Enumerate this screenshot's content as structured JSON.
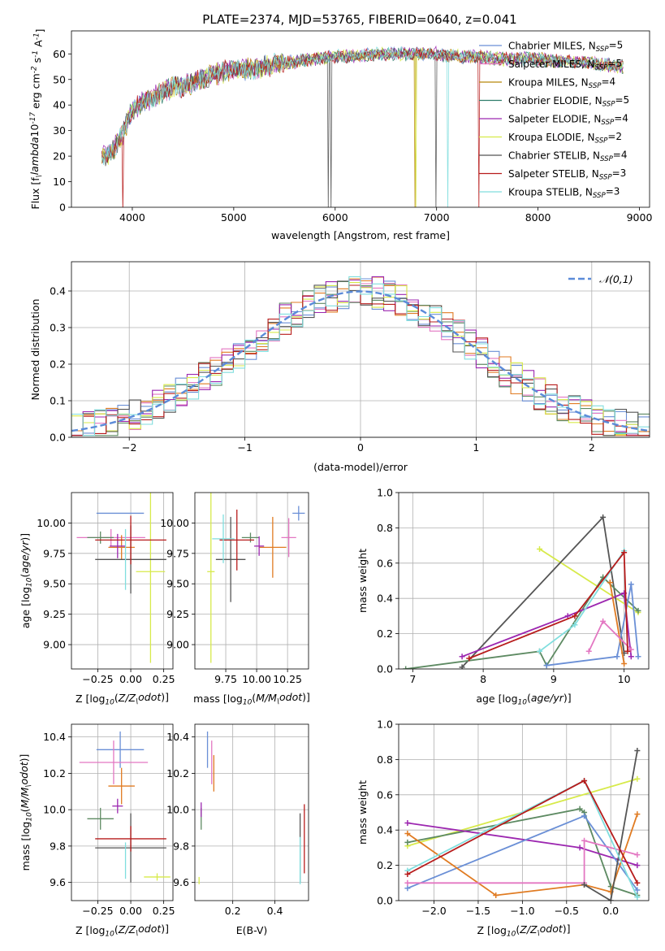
{
  "title": "PLATE=2374, MJD=53765, FIBERID=0640, z=0.041",
  "colors": {
    "c0": "#6a8fd6",
    "c1": "#e377c2",
    "c2": "#e07b22",
    "c3": "#5d8a62",
    "c4": "#9c27b0",
    "c5": "#d7ea4a",
    "c6": "#555555",
    "c7": "#b71c1c",
    "c8": "#80dede",
    "spec0": "#6a8fd6",
    "spec1": "#e377c2",
    "spec2": "#b8860b",
    "spec3": "#2e7d6b",
    "spec4": "#9c27b0",
    "spec5": "#d7ea4a",
    "spec6": "#555555",
    "spec7": "#b71c1c",
    "spec8": "#80dede",
    "gauss": "#5b8bd9"
  },
  "chart_data": [
    {
      "type": "line",
      "id": "spectrum",
      "xlabel": "wavelength [Angstrom, rest frame]",
      "ylabel": "Flux [f$_\\lambda$10$^{-17}$ erg cm$^{-2}$ s$^{-1}$ A$^{-1}$]",
      "xlim": [
        3400,
        9100
      ],
      "ylim": [
        0,
        69
      ],
      "xticks": [
        4000,
        5000,
        6000,
        7000,
        8000,
        9000
      ],
      "yticks": [
        0,
        10,
        20,
        30,
        40,
        50,
        60
      ],
      "legend_position": "top-right",
      "continuum": {
        "x": [
          3700,
          3800,
          3900,
          4000,
          4100,
          4200,
          4300,
          4400,
          4500,
          4600,
          4800,
          5000,
          5200,
          5400,
          5600,
          5800,
          6000,
          6200,
          6400,
          6600,
          6800,
          7000,
          7200,
          7400,
          7600,
          7800,
          8000,
          8200,
          8400,
          8600,
          8800
        ],
        "y": [
          20,
          22,
          28,
          38,
          41,
          43,
          45,
          47,
          47,
          49,
          52,
          54,
          54,
          56,
          57,
          58,
          59,
          59,
          60,
          60,
          60,
          60,
          59,
          59,
          58,
          58,
          58,
          57,
          57,
          56,
          55
        ]
      },
      "series": [
        {
          "label": "Chabrier MILES, N$_{SSP}$=5",
          "color_key": "spec0",
          "dropouts": []
        },
        {
          "label": "Salpeter MILES, N$_{SSP}$=5",
          "color_key": "spec1",
          "dropouts": []
        },
        {
          "label": "Kroupa MILES, N$_{SSP}$=4",
          "color_key": "spec2",
          "dropouts": [
            6790
          ]
        },
        {
          "label": "Chabrier ELODIE, N$_{SSP}$=5",
          "color_key": "spec3",
          "dropouts": []
        },
        {
          "label": "Salpeter ELODIE, N$_{SSP}$=4",
          "color_key": "spec4",
          "dropouts": []
        },
        {
          "label": "Kroupa ELODIE, N$_{SSP}$=2",
          "color_key": "spec5",
          "dropouts": [
            6800
          ]
        },
        {
          "label": "Chabrier STELIB, N$_{SSP}$=4",
          "color_key": "spec6",
          "dropouts": [
            5930,
            5960,
            6990
          ]
        },
        {
          "label": "Salpeter STELIB, N$_{SSP}$=3",
          "color_key": "spec7",
          "dropouts": [
            3910,
            7420
          ]
        },
        {
          "label": "Kroupa STELIB, N$_{SSP}$=3",
          "color_key": "spec8",
          "dropouts": [
            7110
          ]
        }
      ]
    },
    {
      "type": "histogram",
      "id": "residuals",
      "xlabel": "(data-model)/error",
      "ylabel": "Normed distribution",
      "xlim": [
        -2.5,
        2.5
      ],
      "ylim": [
        0,
        0.48
      ],
      "xticks": [
        -2,
        -1,
        0,
        1,
        2
      ],
      "yticks": [
        0.0,
        0.1,
        0.2,
        0.3,
        0.4
      ],
      "grid": true,
      "legend": "$\\mathcal{N}(0,1)$",
      "legend_position": "top-right",
      "bin_width": 0.1,
      "bin_start": -2.5,
      "gaussian": {
        "mean": 0,
        "sigma": 1
      }
    },
    {
      "type": "scatter-errorbar",
      "id": "age_vs_Z",
      "xlabel": "Z [log$_{10}$($Z/Z_\\odot$)]",
      "ylabel": "age  [log$_{10}$($age/yr$)]",
      "xlim": [
        -0.45,
        0.32
      ],
      "ylim": [
        8.8,
        10.25
      ],
      "xticks": [
        -0.25,
        0.0,
        0.25
      ],
      "yticks": [
        9.0,
        9.25,
        9.5,
        9.75,
        10.0
      ],
      "grid": true,
      "points": [
        {
          "color_key": "c0",
          "x": -0.08,
          "xerr": 0.18,
          "y": 10.08,
          "yerr": 0.0
        },
        {
          "color_key": "c1",
          "x": -0.15,
          "xerr": 0.26,
          "y": 9.88,
          "yerr": 0.07
        },
        {
          "color_key": "c2",
          "x": -0.07,
          "xerr": 0.1,
          "y": 9.8,
          "yerr": 0.1
        },
        {
          "color_key": "c3",
          "x": -0.23,
          "xerr": 0.1,
          "y": 9.88,
          "yerr": 0.05
        },
        {
          "color_key": "c4",
          "x": -0.1,
          "xerr": 0.06,
          "y": 9.81,
          "yerr": 0.1
        },
        {
          "color_key": "c5",
          "x": 0.15,
          "xerr": 0.11,
          "y": 9.6,
          "yerr": 0.75
        },
        {
          "color_key": "c6",
          "x": 0.0,
          "xerr": 0.27,
          "y": 9.7,
          "yerr": 0.28
        },
        {
          "color_key": "c7",
          "x": 0.0,
          "xerr": 0.27,
          "y": 9.86,
          "yerr": 0.2
        },
        {
          "color_key": "c8",
          "x": -0.04,
          "xerr": 0.0,
          "y": 9.7,
          "yerr": 0.25
        }
      ]
    },
    {
      "type": "scatter-errorbar",
      "id": "age_vs_mass",
      "xlabel": "mass [log$_{10}$($M/M_\\odot$)]",
      "ylabel": "",
      "xlim": [
        9.5,
        10.42
      ],
      "ylim": [
        8.8,
        10.25
      ],
      "xticks": [
        9.75,
        10.0,
        10.25
      ],
      "yticks": [
        9.0,
        9.25,
        9.5,
        9.75,
        10.0
      ],
      "grid": true,
      "points": [
        {
          "color_key": "c0",
          "x": 10.34,
          "xerr": 0.05,
          "y": 10.08,
          "yerr": 0.06
        },
        {
          "color_key": "c1",
          "x": 10.26,
          "xerr": 0.06,
          "y": 9.88,
          "yerr": 0.16
        },
        {
          "color_key": "c2",
          "x": 10.13,
          "xerr": 0.11,
          "y": 9.8,
          "yerr": 0.25
        },
        {
          "color_key": "c3",
          "x": 9.95,
          "xerr": 0.07,
          "y": 9.88,
          "yerr": 0.04
        },
        {
          "color_key": "c4",
          "x": 10.02,
          "xerr": 0.04,
          "y": 9.81,
          "yerr": 0.08
        },
        {
          "color_key": "c5",
          "x": 9.63,
          "xerr": 0.03,
          "y": 9.6,
          "yerr": 0.75
        },
        {
          "color_key": "c6",
          "x": 9.79,
          "xerr": 0.12,
          "y": 9.7,
          "yerr": 0.35
        },
        {
          "color_key": "c7",
          "x": 9.84,
          "xerr": 0.14,
          "y": 9.86,
          "yerr": 0.25
        },
        {
          "color_key": "c8",
          "x": 9.73,
          "xerr": 0.09,
          "y": 9.87,
          "yerr": 0.2
        }
      ]
    },
    {
      "type": "line",
      "id": "massweight_vs_age",
      "xlabel": "age  [log$_{10}$($age/yr$)]",
      "ylabel": "mass weight",
      "xlim": [
        6.8,
        10.35
      ],
      "ylim": [
        0,
        1.0
      ],
      "xticks": [
        7,
        8,
        9,
        10
      ],
      "yticks": [
        0.0,
        0.2,
        0.4,
        0.6,
        0.8,
        1.0
      ],
      "grid": true,
      "series": [
        {
          "color_key": "c5",
          "x": [
            8.8,
            10.2
          ],
          "y": [
            0.68,
            0.32
          ]
        },
        {
          "color_key": "c6",
          "x": [
            7.7,
            9.7,
            10.0
          ],
          "y": [
            0.01,
            0.86,
            0.09
          ]
        },
        {
          "color_key": "c3",
          "x": [
            6.9,
            8.8,
            8.9,
            9.7,
            10.2
          ],
          "y": [
            0.0,
            0.1,
            0.02,
            0.52,
            0.33
          ]
        },
        {
          "color_key": "c4",
          "x": [
            7.7,
            9.2,
            10.0,
            10.1
          ],
          "y": [
            0.07,
            0.3,
            0.43,
            0.07
          ]
        },
        {
          "color_key": "c0",
          "x": [
            8.9,
            9.9,
            10.1,
            10.2
          ],
          "y": [
            0.02,
            0.07,
            0.48,
            0.07
          ]
        },
        {
          "color_key": "c2",
          "x": [
            9.8,
            10.0
          ],
          "y": [
            0.49,
            0.03
          ]
        },
        {
          "color_key": "c1",
          "x": [
            9.5,
            9.7,
            10.1
          ],
          "y": [
            0.1,
            0.27,
            0.11
          ]
        },
        {
          "color_key": "c8",
          "x": [
            8.8,
            9.3,
            10.0
          ],
          "y": [
            0.1,
            0.25,
            0.67
          ]
        },
        {
          "color_key": "c7",
          "x": [
            7.8,
            9.3,
            10.0,
            10.05
          ],
          "y": [
            0.06,
            0.3,
            0.66,
            0.1
          ]
        }
      ]
    },
    {
      "type": "scatter-errorbar",
      "id": "mass_vs_Z",
      "xlabel": "Z [log$_{10}$($Z/Z_\\odot$)]",
      "ylabel": "mass [log$_{10}$($M/M_\\odot$)]",
      "xlim": [
        -0.45,
        0.32
      ],
      "ylim": [
        9.5,
        10.47
      ],
      "xticks": [
        -0.25,
        0.0,
        0.25
      ],
      "yticks": [
        9.6,
        9.8,
        10.0,
        10.2,
        10.4
      ],
      "grid": true,
      "points": [
        {
          "color_key": "c0",
          "x": -0.08,
          "xerr": 0.18,
          "y": 10.33,
          "yerr": 0.1
        },
        {
          "color_key": "c1",
          "x": -0.13,
          "xerr": 0.26,
          "y": 10.26,
          "yerr": 0.12
        },
        {
          "color_key": "c2",
          "x": -0.07,
          "xerr": 0.1,
          "y": 10.13,
          "yerr": 0.1
        },
        {
          "color_key": "c3",
          "x": -0.23,
          "xerr": 0.1,
          "y": 9.95,
          "yerr": 0.06
        },
        {
          "color_key": "c4",
          "x": -0.1,
          "xerr": 0.04,
          "y": 10.02,
          "yerr": 0.04
        },
        {
          "color_key": "c5",
          "x": 0.2,
          "xerr": 0.1,
          "y": 9.63,
          "yerr": 0.02
        },
        {
          "color_key": "c6",
          "x": 0.0,
          "xerr": 0.27,
          "y": 9.79,
          "yerr": 0.19
        },
        {
          "color_key": "c7",
          "x": 0.0,
          "xerr": 0.27,
          "y": 9.84,
          "yerr": 0.07
        },
        {
          "color_key": "c8",
          "x": -0.04,
          "xerr": 0.0,
          "y": 9.72,
          "yerr": 0.1
        }
      ]
    },
    {
      "type": "scatter-errorbar",
      "id": "mass_vs_ebv",
      "xlabel": "E(B-V)",
      "ylabel": "",
      "xlim": [
        0.02,
        0.56
      ],
      "ylim": [
        9.5,
        10.47
      ],
      "xticks": [
        0.2,
        0.4
      ],
      "yticks": [
        9.6,
        9.8,
        10.0,
        10.2,
        10.4
      ],
      "grid": true,
      "points": [
        {
          "color_key": "c0",
          "x": 0.08,
          "xerr": 0.0,
          "y": 10.33,
          "yerr": 0.1
        },
        {
          "color_key": "c1",
          "x": 0.1,
          "xerr": 0.0,
          "y": 10.26,
          "yerr": 0.12
        },
        {
          "color_key": "c2",
          "x": 0.11,
          "xerr": 0.0,
          "y": 10.2,
          "yerr": 0.1
        },
        {
          "color_key": "c3",
          "x": 0.05,
          "xerr": 0.0,
          "y": 9.95,
          "yerr": 0.06
        },
        {
          "color_key": "c4",
          "x": 0.05,
          "xerr": 0.0,
          "y": 10.0,
          "yerr": 0.04
        },
        {
          "color_key": "c5",
          "x": 0.04,
          "xerr": 0.0,
          "y": 9.61,
          "yerr": 0.02
        },
        {
          "color_key": "c6",
          "x": 0.52,
          "xerr": 0.0,
          "y": 9.79,
          "yerr": 0.19
        },
        {
          "color_key": "c7",
          "x": 0.54,
          "xerr": 0.0,
          "y": 9.84,
          "yerr": 0.19
        },
        {
          "color_key": "c8",
          "x": 0.52,
          "xerr": 0.0,
          "y": 9.72,
          "yerr": 0.13
        }
      ]
    },
    {
      "type": "line",
      "id": "massweight_vs_Z",
      "xlabel": "Z [log$_{10}$($Z/Z_\\odot$)]",
      "ylabel": "mass weight",
      "xlim": [
        -2.4,
        0.43
      ],
      "ylim": [
        0,
        1.0
      ],
      "xticks": [
        -2.0,
        -1.5,
        -1.0,
        -0.5,
        0.0
      ],
      "yticks": [
        0.0,
        0.2,
        0.4,
        0.6,
        0.8,
        1.0
      ],
      "grid": true,
      "series": [
        {
          "color_key": "c5",
          "x": [
            -2.3,
            0.3
          ],
          "y": [
            0.31,
            0.69
          ]
        },
        {
          "color_key": "c3",
          "x": [
            -2.3,
            -0.35,
            -0.3,
            0.0,
            0.3
          ],
          "y": [
            0.33,
            0.52,
            0.5,
            0.08,
            0.03
          ]
        },
        {
          "color_key": "c4",
          "x": [
            -2.3,
            -0.35,
            0.3
          ],
          "y": [
            0.44,
            0.3,
            0.2
          ]
        },
        {
          "color_key": "c0",
          "x": [
            -2.3,
            -0.3,
            0.3
          ],
          "y": [
            0.07,
            0.48,
            0.06
          ]
        },
        {
          "color_key": "c2",
          "x": [
            -2.3,
            -1.3,
            -0.3,
            0.0,
            0.3
          ],
          "y": [
            0.38,
            0.03,
            0.09,
            0.05,
            0.49
          ]
        },
        {
          "color_key": "c1",
          "x": [
            -2.3,
            -0.3,
            -0.3,
            0.3
          ],
          "y": [
            0.1,
            0.1,
            0.34,
            0.26
          ]
        },
        {
          "color_key": "c6",
          "x": [
            -0.3,
            0.0,
            0.3
          ],
          "y": [
            0.09,
            0.0,
            0.85
          ]
        },
        {
          "color_key": "c8",
          "x": [
            -2.3,
            -0.3,
            0.3
          ],
          "y": [
            0.17,
            0.68,
            0.02
          ]
        },
        {
          "color_key": "c7",
          "x": [
            -2.3,
            -0.3,
            0.3
          ],
          "y": [
            0.15,
            0.68,
            0.1
          ]
        }
      ]
    }
  ]
}
